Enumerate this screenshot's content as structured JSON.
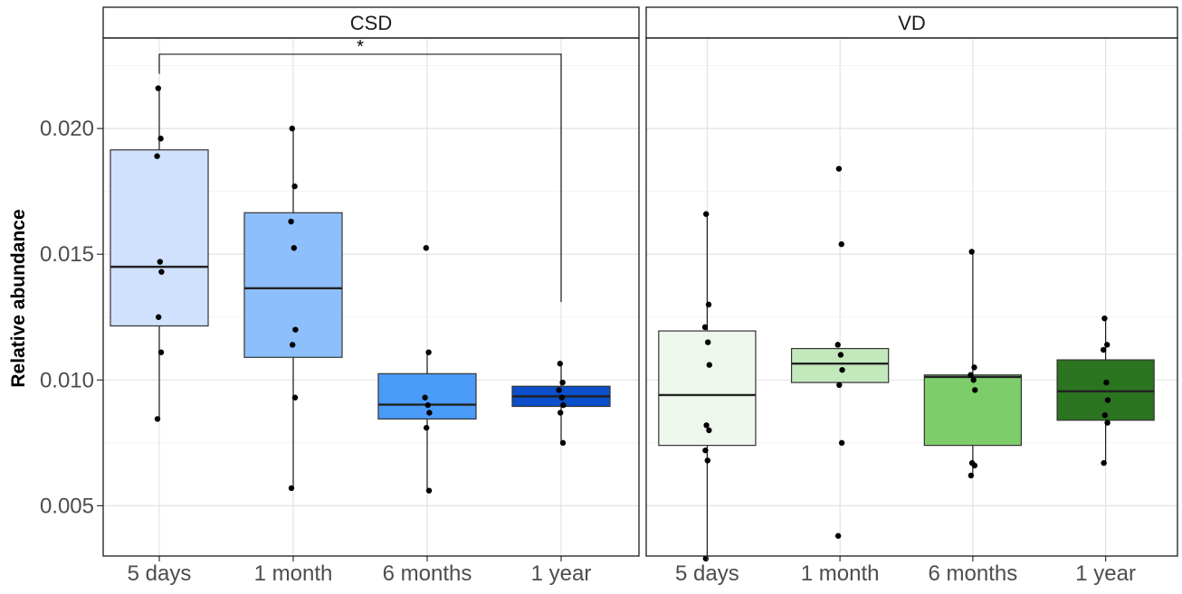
{
  "chart_data": {
    "type": "box",
    "ylabel": "Relative abundance",
    "ylim": [
      0.003,
      0.0236
    ],
    "y_ticks": [
      0.005,
      0.01,
      0.015,
      0.02
    ],
    "y_tick_labels": [
      "0.005",
      "0.010",
      "0.015",
      "0.020"
    ],
    "categories": [
      "5 days",
      "1 month",
      "6 months",
      "1 year"
    ],
    "grid": true,
    "jitter_points": true,
    "panels": [
      {
        "name": "CSD",
        "colors": [
          "#cfe1fd",
          "#8cbffb",
          "#4b9bf9",
          "#0b4fcb"
        ],
        "boxes": [
          {
            "category": "5 days",
            "q1": 0.01215,
            "median": 0.0145,
            "q3": 0.01915,
            "whisker_low": 0.00845,
            "whisker_high": 0.0216
          },
          {
            "category": "1 month",
            "q1": 0.0109,
            "median": 0.01365,
            "q3": 0.01665,
            "whisker_low": 0.0057,
            "whisker_high": 0.02
          },
          {
            "category": "6 months",
            "q1": 0.00845,
            "median": 0.00902,
            "q3": 0.01025,
            "whisker_low": 0.0056,
            "whisker_high": 0.0111
          },
          {
            "category": "1 year",
            "q1": 0.00895,
            "median": 0.00935,
            "q3": 0.00975,
            "whisker_low": 0.0075,
            "whisker_high": 0.01065
          }
        ],
        "points": [
          [
            0.0216,
            0.0196,
            0.0189,
            0.0147,
            0.0143,
            0.0125,
            0.0111,
            0.00845
          ],
          [
            0.02,
            0.0177,
            0.0163,
            0.01525,
            0.012,
            0.0114,
            0.0093,
            0.0057
          ],
          [
            0.01525,
            0.0111,
            0.0093,
            0.009,
            0.0087,
            0.0081,
            0.0056
          ],
          [
            0.01065,
            0.0099,
            0.0096,
            0.0093,
            0.009,
            0.0087,
            0.0075
          ]
        ],
        "significance": {
          "from": "5 days",
          "to": "1 year",
          "label": "*"
        }
      },
      {
        "name": "VD",
        "colors": [
          "#edf7ec",
          "#c2e8bc",
          "#7dcd6b",
          "#2b7420"
        ],
        "boxes": [
          {
            "category": "5 days",
            "q1": 0.0074,
            "median": 0.0094,
            "q3": 0.01195,
            "whisker_low": 0.0029,
            "whisker_high": 0.0166
          },
          {
            "category": "1 month",
            "q1": 0.0099,
            "median": 0.01065,
            "q3": 0.01125,
            "whisker_low": 0.0099,
            "whisker_high": 0.01125
          },
          {
            "category": "6 months",
            "q1": 0.0074,
            "median": 0.01012,
            "q3": 0.0102,
            "whisker_low": 0.0062,
            "whisker_high": 0.0151
          },
          {
            "category": "1 year",
            "q1": 0.0084,
            "median": 0.00955,
            "q3": 0.0108,
            "whisker_low": 0.0067,
            "whisker_high": 0.01245
          }
        ],
        "points": [
          [
            0.0166,
            0.013,
            0.0121,
            0.0115,
            0.0106,
            0.0082,
            0.008,
            0.0072,
            0.0068,
            0.0029
          ],
          [
            0.0184,
            0.0154,
            0.0114,
            0.011,
            0.0104,
            0.0098,
            0.0075,
            0.0038
          ],
          [
            0.0151,
            0.0105,
            0.0102,
            0.01,
            0.0096,
            0.0067,
            0.0066,
            0.0062
          ],
          [
            0.01245,
            0.0114,
            0.0112,
            0.0099,
            0.0092,
            0.0086,
            0.0083,
            0.0067
          ]
        ]
      }
    ]
  }
}
